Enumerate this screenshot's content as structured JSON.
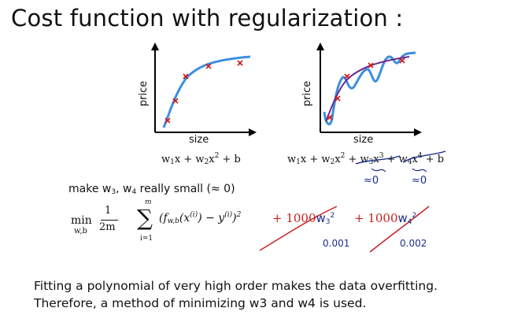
{
  "title": "Cost function with regularization :",
  "plots": {
    "left": {
      "ylabel": "price",
      "xlabel": "size",
      "equation": {
        "t1": "w",
        "s1": "1",
        "t2": "x + w",
        "s2": "2",
        "t3": "x",
        "p2": "2",
        "t4": " + b"
      }
    },
    "right": {
      "ylabel": "price",
      "xlabel": "size",
      "equation": {
        "t1": "w",
        "s1": "1",
        "t2": "x + w",
        "s2": "2",
        "t3": "x",
        "p2": "2",
        "t4": " + ",
        "t5": "w",
        "s3": "3",
        "t6": "x",
        "p3": "3",
        "t7": " + ",
        "t8": "w",
        "s4": "4",
        "t9": "x",
        "p4": "4",
        "t10": " + b"
      },
      "approx1": "≈0",
      "approx2": "≈0"
    }
  },
  "make_small": {
    "a": "make w",
    "sa": "3",
    "b": ", w",
    "sb": "4",
    "c": " really small (≈ 0)"
  },
  "cost": {
    "min": "min",
    "min_sub": "w,b",
    "frac_num": "1",
    "frac_den": "2m",
    "sum_top": "m",
    "sum_bot": "i=1",
    "body": "(f",
    "f_sub": "w,b",
    "body2": "(x",
    "sup_i": "(i)",
    "body3": ") − y",
    "sup_i2": "(i)",
    "body4": ")",
    "sq": "2",
    "plus1": "+ 1000",
    "w3": "w",
    "w3s": "3",
    "w3p": "2",
    "plus2": "+ 1000",
    "w4": "w",
    "w4s": "4",
    "w4p": "2",
    "small1": "0.001",
    "small2": "0.002"
  },
  "caption": {
    "line1": "Fitting a polynomial of very high order makes the data overfitting.",
    "line2": "Therefore, a method of minimizing w3 and w4 is used."
  }
}
